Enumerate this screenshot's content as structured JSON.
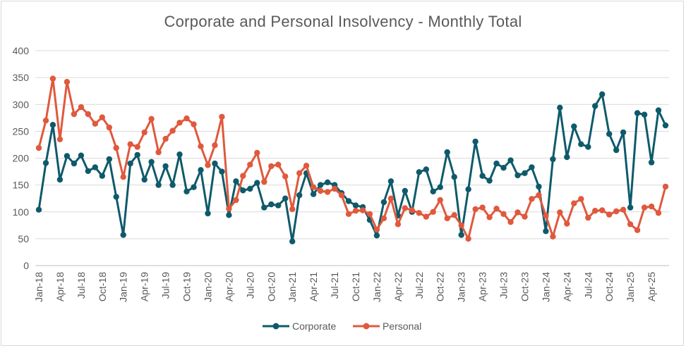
{
  "chart_data": {
    "type": "line",
    "title": "Corporate and Personal Insolvency - Monthly Total",
    "xlabel": "",
    "ylabel": "",
    "ylim": [
      0,
      400
    ],
    "yticks": [
      0,
      50,
      100,
      150,
      200,
      250,
      300,
      350,
      400
    ],
    "grid": "horizontal",
    "legend": "bottom",
    "x": [
      "Jan-18",
      "Feb-18",
      "Mar-18",
      "Apr-18",
      "May-18",
      "Jun-18",
      "Jul-18",
      "Aug-18",
      "Sep-18",
      "Oct-18",
      "Nov-18",
      "Dec-18",
      "Jan-19",
      "Feb-19",
      "Mar-19",
      "Apr-19",
      "May-19",
      "Jun-19",
      "Jul-19",
      "Aug-19",
      "Sep-19",
      "Oct-19",
      "Nov-19",
      "Dec-19",
      "Jan-20",
      "Feb-20",
      "Mar-20",
      "Apr-20",
      "May-20",
      "Jun-20",
      "Jul-20",
      "Aug-20",
      "Sep-20",
      "Oct-20",
      "Nov-20",
      "Dec-20",
      "Jan-21",
      "Feb-21",
      "Mar-21",
      "Apr-21",
      "May-21",
      "Jun-21",
      "Jul-21",
      "Aug-21",
      "Sep-21",
      "Oct-21",
      "Nov-21",
      "Dec-21",
      "Jan-22",
      "Feb-22",
      "Mar-22",
      "Apr-22",
      "May-22",
      "Jun-22",
      "Jul-22",
      "Aug-22",
      "Sep-22",
      "Oct-22",
      "Nov-22",
      "Dec-22",
      "Jan-23",
      "Feb-23",
      "Mar-23",
      "Apr-23",
      "May-23",
      "Jun-23",
      "Jul-23",
      "Aug-23",
      "Sep-23",
      "Oct-23",
      "Nov-23",
      "Dec-23",
      "Jan-24",
      "Feb-24",
      "Mar-24",
      "Apr-24",
      "May-24",
      "Jun-24",
      "Jul-24",
      "Aug-24",
      "Sep-24",
      "Oct-24",
      "Nov-24",
      "Dec-24",
      "Jan-25",
      "Feb-25",
      "Mar-25",
      "Apr-25",
      "May-25",
      "Jun-25"
    ],
    "xtick_labels": [
      "Jan-18",
      "Apr-18",
      "Jul-18",
      "Oct-18",
      "Jan-19",
      "Apr-19",
      "Jul-19",
      "Oct-19",
      "Jan-20",
      "Apr-20",
      "Jul-20",
      "Oct-20",
      "Jan-21",
      "Apr-21",
      "Jul-21",
      "Oct-21",
      "Jan-22",
      "Apr-22",
      "Jul-22",
      "Oct-22",
      "Jan-23",
      "Apr-23",
      "Jul-23",
      "Oct-23",
      "Jan-24",
      "Apr-24",
      "Jul-24",
      "Oct-24",
      "Jan-25",
      "Apr-25"
    ],
    "series": [
      {
        "name": "Corporate",
        "color": "#0e5a6b",
        "values": [
          104,
          191,
          262,
          160,
          204,
          190,
          205,
          176,
          183,
          167,
          198,
          128,
          57,
          190,
          206,
          160,
          193,
          150,
          185,
          150,
          207,
          138,
          146,
          178,
          97,
          190,
          175,
          94,
          157,
          140,
          143,
          154,
          108,
          114,
          112,
          125,
          45,
          131,
          172,
          133,
          150,
          155,
          150,
          135,
          120,
          112,
          109,
          85,
          56,
          118,
          157,
          93,
          139,
          100,
          174,
          179,
          138,
          146,
          211,
          165,
          57,
          142,
          231,
          167,
          158,
          190,
          182,
          196,
          168,
          172,
          183,
          147,
          64,
          198,
          294,
          202,
          259,
          226,
          221,
          297,
          319,
          245,
          215,
          248,
          108,
          284,
          281,
          192,
          289,
          261
        ]
      },
      {
        "name": "Personal",
        "color": "#e0593d",
        "values": [
          219,
          270,
          348,
          235,
          342,
          282,
          295,
          282,
          264,
          276,
          257,
          219,
          165,
          226,
          221,
          248,
          273,
          211,
          236,
          251,
          266,
          274,
          263,
          222,
          187,
          224,
          277,
          106,
          122,
          167,
          188,
          210,
          156,
          185,
          188,
          166,
          105,
          172,
          186,
          146,
          139,
          137,
          143,
          131,
          96,
          102,
          103,
          96,
          67,
          88,
          125,
          77,
          107,
          103,
          98,
          91,
          100,
          122,
          88,
          94,
          75,
          50,
          105,
          108,
          90,
          106,
          96,
          81,
          99,
          91,
          124,
          131,
          93,
          54,
          99,
          78,
          116,
          124,
          89,
          102,
          103,
          95,
          101,
          104,
          77,
          66,
          108,
          110,
          98,
          147
        ]
      }
    ]
  }
}
